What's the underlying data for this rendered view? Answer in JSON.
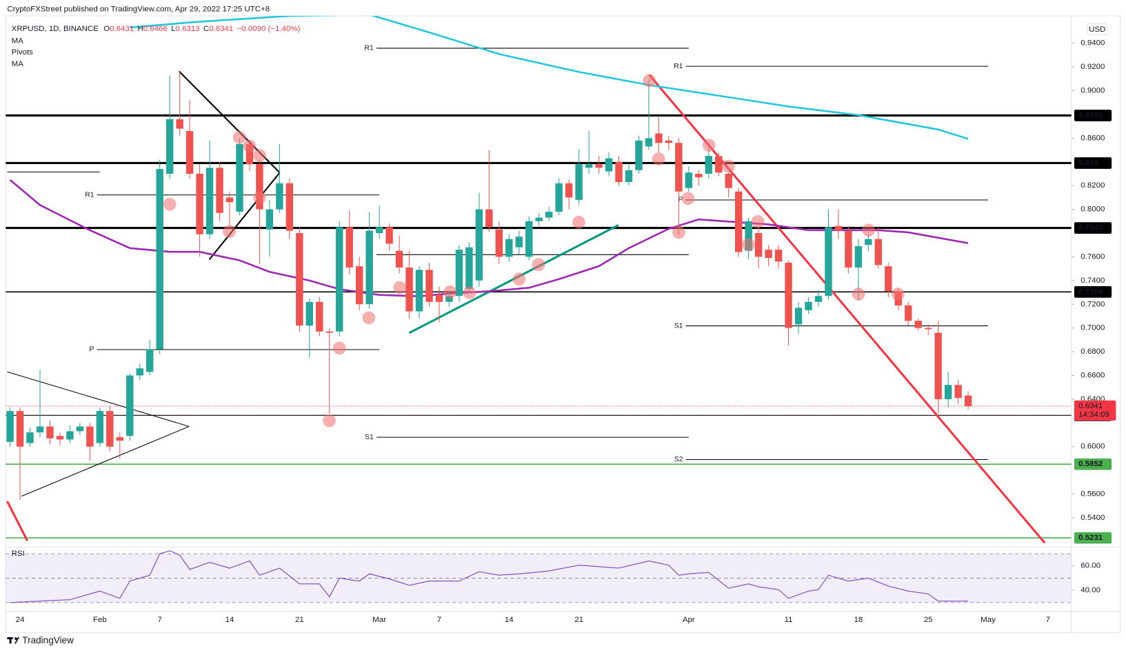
{
  "header": {
    "published": "CryptoFXStreet published on TradingView.com, Apr 29, 2022 17:25 UTC+8",
    "symbol": "XRPUSD, 1D, BINANCE",
    "fields": [
      {
        "label": "O",
        "value": 0.6431
      },
      {
        "label": "H",
        "value": 0.6466
      },
      {
        "label": "L",
        "value": 0.6313
      },
      {
        "label": "C",
        "value": 0.6341
      }
    ],
    "change": "−0.0090 (−1.40%)"
  },
  "footer": {
    "brand": "TradingView"
  },
  "chart_data": {
    "type": "candlestick",
    "currency": "USD",
    "categories": [
      null,
      "24",
      null,
      null,
      null,
      null,
      null,
      null,
      null,
      "Feb",
      null,
      null,
      null,
      null,
      null,
      "7",
      null,
      null,
      null,
      null,
      null,
      null,
      "14",
      null,
      null,
      null,
      null,
      null,
      null,
      "21",
      null,
      null,
      null,
      null,
      null,
      null,
      null,
      "Mar",
      null,
      null,
      null,
      null,
      null,
      "7",
      null,
      null,
      null,
      null,
      null,
      null,
      "14",
      null,
      null,
      null,
      null,
      null,
      null,
      "21",
      null,
      null,
      null,
      null,
      null,
      null,
      null,
      null,
      null,
      null,
      "Apr",
      null,
      null,
      null,
      null,
      null,
      null,
      null,
      null,
      null,
      "11",
      null,
      null,
      null,
      null,
      null,
      null,
      "18",
      null,
      null,
      null,
      null,
      null,
      null,
      "25",
      null,
      null,
      null,
      null,
      null,
      "May",
      null,
      null,
      null,
      null,
      null,
      "7",
      null,
      null
    ],
    "open": [
      0.604,
      0.63,
      0.603,
      0.612,
      0.617,
      0.609,
      0.606,
      0.613,
      0.617,
      0.603,
      0.63,
      0.608,
      0.609,
      0.66,
      0.663,
      0.682,
      0.83,
      0.876,
      0.866,
      0.83,
      0.779,
      0.835,
      0.81,
      0.798,
      0.855,
      0.838,
      0.783,
      0.8,
      0.822,
      0.78,
      0.702,
      0.722,
      0.697,
      0.697,
      0.785,
      0.752,
      0.72,
      0.78,
      0.785,
      0.765,
      0.751,
      0.714,
      0.749,
      0.728,
      0.722,
      0.727,
      0.733,
      0.74,
      0.8,
      0.783,
      0.76,
      0.768,
      0.76,
      0.79,
      0.793,
      0.798,
      0.822,
      0.808,
      0.835,
      0.838,
      0.832,
      0.84,
      0.823,
      0.833,
      0.853,
      0.864,
      0.858,
      0.856,
      0.818,
      0.83,
      0.83,
      0.845,
      0.83,
      0.815,
      0.765,
      0.78,
      0.766,
      0.766,
      0.755,
      0.703,
      0.715,
      0.722,
      0.727,
      0.786,
      0.782,
      0.751,
      0.77,
      0.775,
      0.752,
      0.731,
      0.719,
      0.706,
      0.7,
      0.696,
      0.64,
      0.652,
      0.6431,
      null,
      null,
      null,
      null,
      null,
      null,
      null,
      null,
      null,
      null
    ],
    "high": [
      0.633,
      0.633,
      0.616,
      0.665,
      0.622,
      0.612,
      0.618,
      0.62,
      0.62,
      0.633,
      0.634,
      0.612,
      0.662,
      0.67,
      0.69,
      0.842,
      0.913,
      0.916,
      0.892,
      0.838,
      0.858,
      0.84,
      0.815,
      0.86,
      0.858,
      0.842,
      0.808,
      0.855,
      0.826,
      0.785,
      0.725,
      0.726,
      0.7,
      0.79,
      0.799,
      0.76,
      0.798,
      0.803,
      0.788,
      0.778,
      0.765,
      0.752,
      0.755,
      0.735,
      0.73,
      0.77,
      0.772,
      0.814,
      0.85,
      0.79,
      0.779,
      0.782,
      0.794,
      0.797,
      0.802,
      0.826,
      0.825,
      0.851,
      0.866,
      0.845,
      0.848,
      0.845,
      0.838,
      0.862,
      0.91,
      0.878,
      0.862,
      0.86,
      0.836,
      0.833,
      0.852,
      0.848,
      0.832,
      0.818,
      0.793,
      0.785,
      0.77,
      0.77,
      0.757,
      0.722,
      0.726,
      0.732,
      0.8,
      0.8,
      0.786,
      0.775,
      0.779,
      0.786,
      0.755,
      0.734,
      0.722,
      0.708,
      0.703,
      0.706,
      0.663,
      0.656,
      0.6466,
      null,
      null,
      null,
      null,
      null,
      null,
      null,
      null,
      null,
      null
    ],
    "low": [
      0.6,
      0.555,
      0.6,
      0.608,
      0.602,
      0.601,
      0.603,
      0.61,
      0.588,
      0.6,
      0.596,
      0.59,
      0.605,
      0.656,
      0.66,
      0.678,
      0.826,
      0.862,
      0.826,
      0.76,
      0.775,
      0.79,
      0.783,
      0.795,
      0.832,
      0.754,
      0.76,
      0.797,
      0.775,
      0.697,
      0.675,
      0.693,
      0.628,
      0.693,
      0.745,
      0.715,
      0.716,
      0.775,
      0.765,
      0.746,
      0.708,
      0.708,
      0.718,
      0.705,
      0.718,
      0.722,
      0.73,
      0.735,
      0.781,
      0.754,
      0.756,
      0.762,
      0.757,
      0.786,
      0.79,
      0.795,
      0.8,
      0.804,
      0.83,
      0.83,
      0.828,
      0.82,
      0.82,
      0.83,
      0.85,
      0.848,
      0.85,
      0.778,
      0.815,
      0.82,
      0.826,
      0.828,
      0.81,
      0.76,
      0.758,
      0.75,
      0.752,
      0.75,
      0.685,
      0.695,
      0.712,
      0.718,
      0.724,
      0.775,
      0.746,
      0.723,
      0.765,
      0.75,
      0.726,
      0.715,
      0.702,
      0.698,
      0.694,
      0.628,
      0.633,
      0.636,
      0.6313,
      null,
      null,
      null,
      null,
      null,
      null,
      null,
      null,
      null,
      null
    ],
    "close": [
      0.63,
      0.6,
      0.612,
      0.617,
      0.607,
      0.606,
      0.613,
      0.617,
      0.6,
      0.63,
      0.6,
      0.605,
      0.66,
      0.666,
      0.682,
      0.834,
      0.876,
      0.868,
      0.83,
      0.779,
      0.835,
      0.797,
      0.806,
      0.855,
      0.838,
      0.8,
      0.8,
      0.822,
      0.782,
      0.702,
      0.722,
      0.697,
      0.696,
      0.785,
      0.751,
      0.72,
      0.782,
      0.785,
      0.771,
      0.751,
      0.714,
      0.749,
      0.722,
      0.722,
      0.727,
      0.766,
      0.768,
      0.8,
      0.785,
      0.76,
      0.775,
      0.777,
      0.79,
      0.793,
      0.798,
      0.822,
      0.81,
      0.838,
      0.838,
      0.835,
      0.843,
      0.823,
      0.833,
      0.858,
      0.86,
      0.856,
      0.856,
      0.815,
      0.831,
      0.827,
      0.845,
      0.831,
      0.818,
      0.764,
      0.79,
      0.76,
      0.759,
      0.756,
      0.7,
      0.717,
      0.722,
      0.727,
      0.785,
      0.782,
      0.751,
      0.769,
      0.775,
      0.753,
      0.731,
      0.719,
      0.706,
      0.7,
      0.699,
      0.64,
      0.652,
      0.641,
      0.6341,
      null,
      null,
      null,
      null,
      null,
      null,
      null,
      null,
      null,
      null
    ],
    "up_color": "#26a69a",
    "down_color": "#ef5350",
    "ylim": [
      0.5158,
      0.9764
    ],
    "yticks": [
      {
        "value": 0.94,
        "label": "0.9400"
      },
      {
        "value": 0.92,
        "label": "0.9200"
      },
      {
        "value": 0.9,
        "label": "0.9000"
      },
      {
        "value": 0.86,
        "label": "0.8600"
      },
      {
        "value": 0.82,
        "label": "0.8200"
      },
      {
        "value": 0.8,
        "label": "0.8000"
      },
      {
        "value": 0.76,
        "label": "0.7600"
      },
      {
        "value": 0.74,
        "label": "0.7400"
      },
      {
        "value": 0.72,
        "label": "0.7200"
      },
      {
        "value": 0.7,
        "label": "0.7000"
      },
      {
        "value": 0.68,
        "label": "0.6800"
      },
      {
        "value": 0.66,
        "label": "0.6600"
      },
      {
        "value": 0.64,
        "label": "0.6400"
      },
      {
        "value": 0.6,
        "label": "0.6000"
      },
      {
        "value": 0.56,
        "label": "0.5600"
      },
      {
        "value": 0.54,
        "label": "0.5400"
      }
    ],
    "grid": false,
    "last": {
      "value": 0.6341,
      "countdown": "14:34:09",
      "color": "#f23645"
    },
    "levels": [
      {
        "value": 0.8791,
        "color": "#000000",
        "weight": "bold"
      },
      {
        "value": 0.839,
        "color": "#000000",
        "weight": "bold"
      },
      {
        "value": 0.7843,
        "color": "#000000",
        "weight": "bold"
      },
      {
        "value": 0.7304,
        "color": "#000000",
        "weight": "medium"
      },
      {
        "value": 0.6264,
        "color": "#000000",
        "weight": "thin"
      },
      {
        "value": 0.5852,
        "color": "#4caf50",
        "weight": "medium"
      },
      {
        "value": 0.5231,
        "color": "#4caf50",
        "weight": "medium"
      }
    ],
    "ma": [
      {
        "name": "MA",
        "color": "#26c6da",
        "x": [
          12,
          19,
          28,
          36,
          42,
          49,
          57,
          64,
          71,
          78,
          85,
          93,
          96
        ],
        "values": [
          0.9533,
          0.9582,
          0.963,
          0.9642,
          0.9491,
          0.9309,
          0.9158,
          0.9048,
          0.8958,
          0.8867,
          0.8794,
          0.8673,
          0.8594
        ]
      },
      {
        "name": "MA",
        "color": "#9c27b0",
        "x": [
          0,
          3,
          8,
          12,
          16,
          19,
          23,
          26,
          30,
          33,
          37,
          41,
          44,
          48,
          52,
          55,
          59,
          62,
          66,
          69,
          72,
          76,
          80,
          83,
          87,
          90,
          96
        ],
        "values": [
          0.8248,
          0.8036,
          0.7824,
          0.7673,
          0.7642,
          0.7642,
          0.757,
          0.7473,
          0.74,
          0.7327,
          0.7279,
          0.7267,
          0.7291,
          0.7309,
          0.7339,
          0.7412,
          0.7521,
          0.7673,
          0.7836,
          0.7915,
          0.7897,
          0.7873,
          0.7824,
          0.7824,
          0.7824,
          0.7806,
          0.7715
        ]
      }
    ],
    "pivots": {
      "name": "Pivots",
      "levels": [
        {
          "label": null,
          "value": 0.8315,
          "x": [
            0,
            9
          ]
        },
        {
          "label": "R1",
          "value": 0.8121,
          "x": [
            9,
            37
          ]
        },
        {
          "label": "P",
          "value": 0.6818,
          "x": [
            9,
            37
          ]
        },
        {
          "label": "R1",
          "value": 0.9358,
          "x": [
            37,
            68
          ]
        },
        {
          "label": null,
          "value": 0.7618,
          "x": [
            37,
            68
          ]
        },
        {
          "label": "S1",
          "value": 0.6079,
          "x": [
            37,
            68
          ]
        },
        {
          "label": "R1",
          "value": 0.9206,
          "x": [
            68,
            98
          ]
        },
        {
          "label": "P",
          "value": 0.8079,
          "x": [
            68,
            98
          ]
        },
        {
          "label": "S1",
          "value": 0.7018,
          "x": [
            68,
            98
          ]
        },
        {
          "label": "S2",
          "value": 0.5891,
          "x": [
            68,
            98
          ]
        }
      ]
    },
    "rsi": {
      "name": "RSI",
      "color": "#7e57c2",
      "x": [
        0,
        3,
        6,
        9,
        11,
        12,
        14,
        15,
        16,
        17,
        18,
        20,
        22,
        24,
        25,
        27,
        29,
        31,
        32,
        33,
        35,
        36,
        38,
        40,
        42,
        45,
        47,
        49,
        51,
        54,
        57,
        59,
        61,
        64,
        66,
        67,
        68,
        70,
        72,
        74,
        75,
        77,
        78,
        80,
        81,
        82,
        84,
        86,
        88,
        90,
        92,
        93,
        96
      ],
      "values": [
        30,
        31.2,
        32.4,
        39.4,
        33.5,
        47.6,
        52.4,
        70,
        72.4,
        68.8,
        57.1,
        62.9,
        58.2,
        64.1,
        52.4,
        58.2,
        45.3,
        45.3,
        34.7,
        50,
        47.6,
        53.5,
        49.4,
        44.1,
        47.6,
        47.6,
        55.3,
        52.4,
        53.5,
        55.9,
        60.6,
        59.4,
        58.2,
        64.1,
        60.6,
        52.4,
        53.5,
        54.7,
        41.8,
        45.3,
        42.9,
        40.6,
        33.5,
        39.4,
        40.6,
        52.4,
        47.6,
        50,
        43.5,
        39.4,
        37.1,
        31.2,
        31.2
      ],
      "ylim": [
        22.9,
        74.7
      ],
      "yticks": [
        {
          "value": 60,
          "label": "60.00"
        },
        {
          "value": 40,
          "label": "40.00"
        }
      ],
      "bands": [
        70,
        50,
        30
      ]
    }
  }
}
